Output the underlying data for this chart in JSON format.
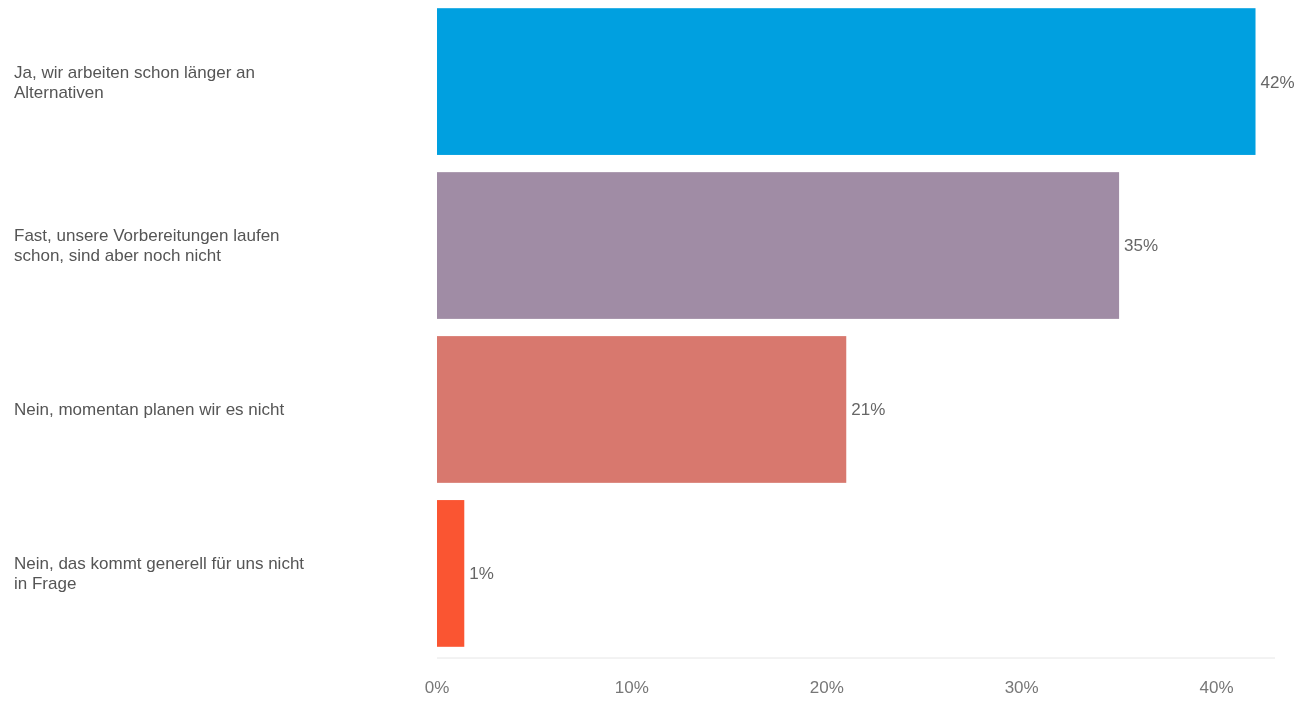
{
  "chart_data": {
    "type": "bar",
    "orientation": "horizontal",
    "categories": [
      "Ja, wir arbeiten schon länger an Alternativen",
      "Fast, unsere Vorbereitungen laufen schon, sind aber noch nicht",
      "Nein, momentan planen wir es nicht",
      "Nein, das kommt generell für uns nicht in Frage"
    ],
    "values": [
      42,
      35,
      21,
      1.4
    ],
    "value_labels": [
      "42%",
      "35%",
      "21%",
      "1%"
    ],
    "colors": [
      "#00a0e0",
      "#a08ca5",
      "#d8786e",
      "#fa5532"
    ],
    "xlim": [
      0,
      43
    ],
    "xticks": [
      {
        "value": 0,
        "label": "0%"
      },
      {
        "value": 10,
        "label": "10%"
      },
      {
        "value": 20,
        "label": "20%"
      },
      {
        "value": 30,
        "label": "30%"
      },
      {
        "value": 40,
        "label": "40%"
      }
    ],
    "grid": false
  }
}
